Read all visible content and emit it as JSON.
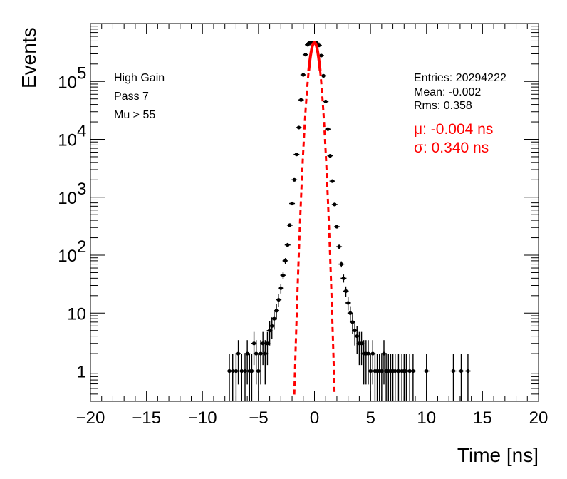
{
  "chart_data": {
    "type": "scatter",
    "xlabel": "Time [ns]",
    "ylabel": "Events",
    "xlim": [
      -20,
      20
    ],
    "ylim": [
      0.3,
      1000000
    ],
    "yscale": "log",
    "grid": false,
    "x_ticks": [
      "−20",
      "−15",
      "−10",
      "−5",
      "0",
      "5",
      "10",
      "15",
      "20"
    ],
    "y_ticks": [
      {
        "value": 1,
        "base": "1",
        "exp": ""
      },
      {
        "value": 10,
        "base": "10",
        "exp": ""
      },
      {
        "value": 100,
        "base": "10",
        "exp": "2"
      },
      {
        "value": 1000,
        "base": "10",
        "exp": "3"
      },
      {
        "value": 10000,
        "base": "10",
        "exp": "4"
      },
      {
        "value": 100000,
        "base": "10",
        "exp": "5"
      }
    ],
    "labels_left": [
      "High Gain",
      "Pass 7",
      "Mu > 55"
    ],
    "stats": [
      "Entries: 20294222",
      "Mean: -0.002",
      "Rms: 0.358"
    ],
    "fit": {
      "mu_text": "μ: -0.004 ns",
      "sigma_text": "σ: 0.340 ns",
      "mu": -0.004,
      "sigma": 0.34,
      "peak": 470000,
      "color": "#ff0000"
    },
    "series": [
      {
        "color": "#000000",
        "x": [
          -7.6,
          -7.3,
          -7.0,
          -6.8,
          -6.5,
          -6.2,
          -6.0,
          -5.8,
          -5.6,
          -5.4,
          -5.2,
          -5.0,
          -4.8,
          -4.6,
          -4.4,
          -4.2,
          -4.0,
          -3.8,
          -3.6,
          -3.4,
          -3.2,
          -3.0,
          -2.8,
          -2.6,
          -2.4,
          -2.2,
          -2.0,
          -1.8,
          -1.6,
          -1.4,
          -1.2,
          -1.0,
          -0.8,
          -0.6,
          -0.4,
          -0.2,
          0.0,
          0.2,
          0.4,
          0.6,
          0.8,
          1.0,
          1.2,
          1.4,
          1.6,
          1.8,
          2.0,
          2.2,
          2.4,
          2.6,
          2.8,
          3.0,
          3.2,
          3.4,
          3.6,
          3.8,
          4.0,
          4.2,
          4.4,
          4.6,
          4.8,
          5.0,
          5.2,
          5.4,
          5.6,
          5.8,
          6.0,
          6.2,
          6.4,
          6.6,
          6.8,
          7.0,
          7.2,
          7.5,
          7.8,
          8.0,
          8.2,
          8.5,
          8.8,
          10.0,
          12.4,
          13.1,
          13.7
        ],
        "y": [
          1,
          1,
          1,
          2,
          1,
          1,
          2,
          1,
          1,
          3,
          2,
          1,
          2,
          3,
          2,
          3,
          5,
          6,
          8,
          11,
          17,
          27,
          45,
          80,
          150,
          330,
          780,
          2000,
          5500,
          16000,
          48000,
          130000,
          290000,
          430000,
          470000,
          470000,
          470000,
          460000,
          420000,
          280000,
          125000,
          45000,
          15000,
          5200,
          1900,
          750,
          310,
          140,
          70,
          40,
          24,
          15,
          10,
          7,
          5,
          4,
          3,
          3,
          2,
          2,
          2,
          1,
          2,
          1,
          1,
          1,
          1,
          2,
          1,
          1,
          1,
          1,
          1,
          1,
          1,
          1,
          1,
          1,
          1,
          1,
          1,
          1,
          1
        ]
      }
    ]
  }
}
